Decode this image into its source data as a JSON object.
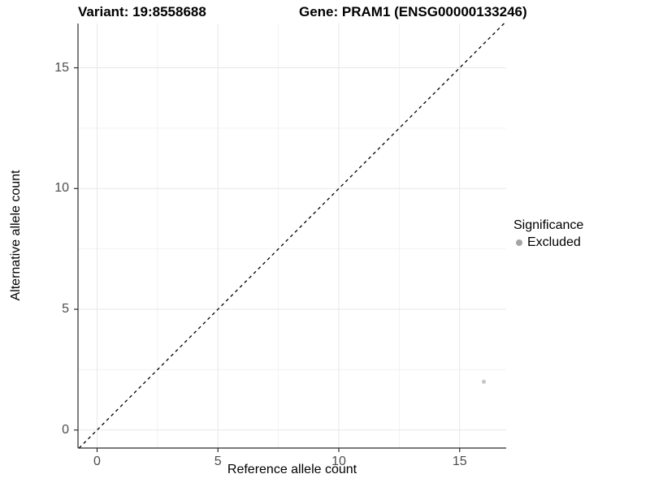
{
  "titles": {
    "variant": "Variant: 19:8558688",
    "gene": "Gene: PRAM1 (ENSG00000133246)"
  },
  "axes": {
    "x": {
      "label": "Reference allele count"
    },
    "y": {
      "label": "Alternative allele count"
    }
  },
  "legend": {
    "title": "Significance",
    "items": [
      {
        "label": "Excluded",
        "dot_color": "#a5a5a5"
      }
    ]
  },
  "colors": {
    "background": "#ffffff",
    "grid_major": "#e7e7e7",
    "grid_minor": "#f2f2f2",
    "axis_line": "#2b2b2b",
    "tick_text": "#4d4d4d",
    "point": "#c6c6c6",
    "identity_line": "#000000"
  },
  "chart_data": {
    "type": "scatter",
    "title": "Variant: 19:8558688 | Gene: PRAM1 (ENSG00000133246)",
    "xlabel": "Reference allele count",
    "ylabel": "Alternative allele count",
    "xlim": [
      -0.8,
      16.9
    ],
    "ylim": [
      -0.75,
      16.85
    ],
    "x_ticks": [
      0,
      5,
      10,
      15
    ],
    "y_ticks": [
      0,
      5,
      10,
      15
    ],
    "x_minor_ticks": [
      2.5,
      7.5,
      12.5
    ],
    "y_minor_ticks": [
      2.5,
      7.5,
      12.5
    ],
    "grid": "major+minor",
    "legend_position": "right",
    "series": [
      {
        "name": "Excluded",
        "color": "#c6c6c6",
        "points": [
          {
            "x": 16,
            "y": 2
          }
        ]
      }
    ],
    "reference_line": {
      "type": "identity",
      "slope": 1,
      "intercept": 0,
      "style": "dashed",
      "color": "#000000"
    }
  }
}
